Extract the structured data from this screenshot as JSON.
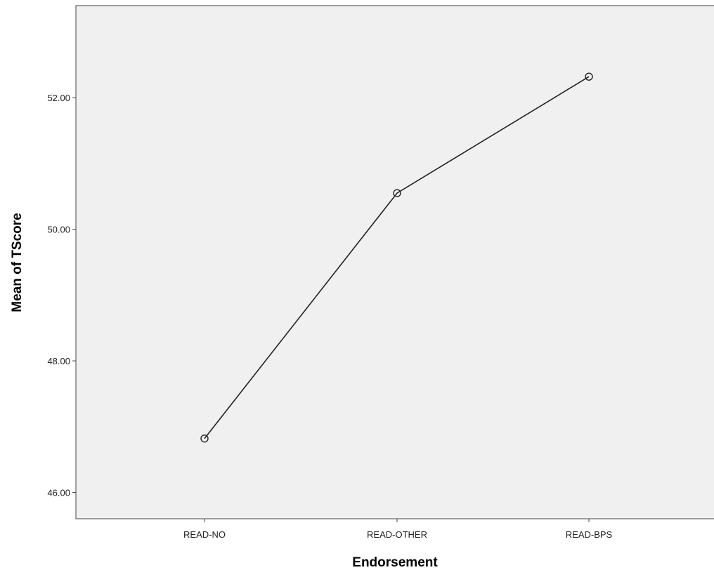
{
  "chart_data": {
    "type": "line",
    "title": "",
    "xlabel": "Endorsement",
    "ylabel": "Mean of TScore",
    "categories": [
      "READ-NO",
      "READ-OTHER",
      "READ-BPS"
    ],
    "series": [
      {
        "values": [
          46.82,
          50.55,
          52.32
        ]
      }
    ],
    "ylim": [
      45.6,
      53.4
    ],
    "yticks": [
      46.0,
      48.0,
      50.0,
      52.0
    ],
    "ytick_labels": [
      "46.00",
      "48.00",
      "50.00",
      "52.00"
    ],
    "marker": "open-circle",
    "grid": false,
    "legend": "none",
    "colors": {
      "plot_background": "#f0f0f0",
      "line": "#222222",
      "axis": "#444444",
      "page_background": "#ffffff"
    }
  }
}
